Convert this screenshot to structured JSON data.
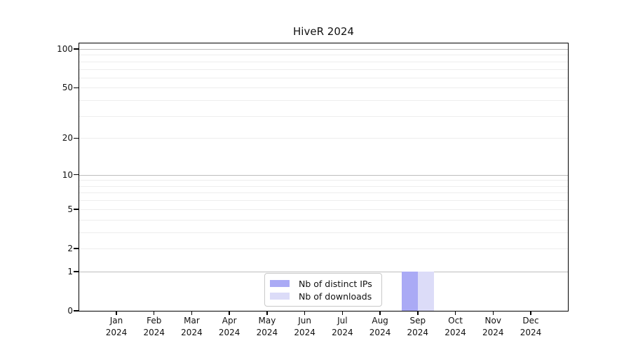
{
  "chart_data": {
    "type": "bar",
    "title": "HiveR 2024",
    "categories": [
      "Jan",
      "Feb",
      "Mar",
      "Apr",
      "May",
      "Jun",
      "Jul",
      "Aug",
      "Sep",
      "Oct",
      "Nov",
      "Dec"
    ],
    "x_sublabel": "2024",
    "series": [
      {
        "name": "Nb of distinct IPs",
        "color": "#aaaaf5",
        "values": [
          0,
          0,
          0,
          0,
          0,
          0,
          0,
          0,
          1,
          0,
          0,
          0
        ]
      },
      {
        "name": "Nb of downloads",
        "color": "#dcdcf8",
        "values": [
          0,
          0,
          0,
          0,
          0,
          0,
          0,
          0,
          1,
          0,
          0,
          0
        ]
      }
    ],
    "y_ticks": [
      0,
      1,
      2,
      5,
      10,
      20,
      50,
      100
    ],
    "y_scale": "log1p",
    "ylim": [
      0,
      110
    ],
    "xlabel": "",
    "ylabel": "",
    "grid": "horizontal, major at 1/10/100 with faint minors",
    "legend_position": "bottom-center-inside",
    "colors": {
      "major_grid": "#bdbdbd",
      "minor_grid": "#ededed",
      "axis": "#000000",
      "legend_border": "#c9c9c9",
      "background": "#ffffff"
    }
  }
}
